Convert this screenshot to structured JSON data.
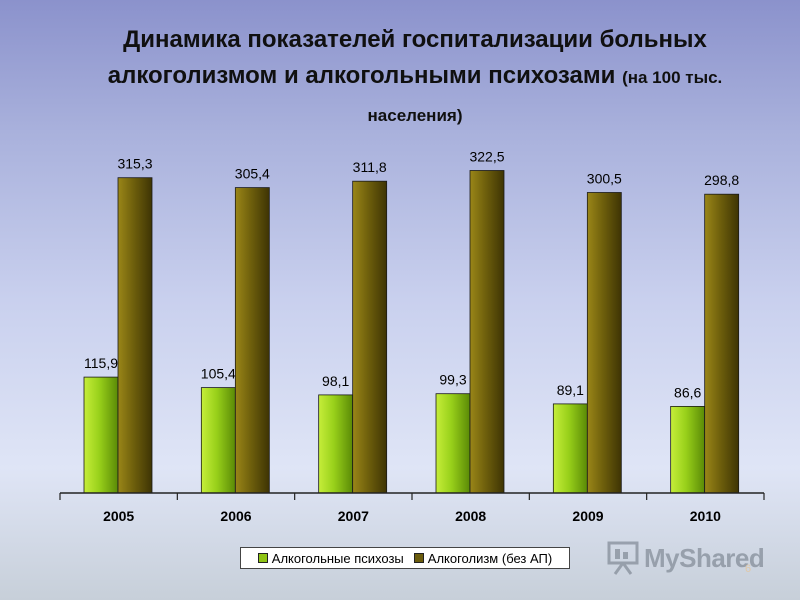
{
  "title": {
    "main": "Динамика показателей госпитализации больных алкоголизмом и алкогольными психозами",
    "suffix": "(на 100 тыс. населения)"
  },
  "chart_data": {
    "type": "bar",
    "categories": [
      "2005",
      "2006",
      "2007",
      "2008",
      "2009",
      "2010"
    ],
    "series": [
      {
        "name": "Алкогольные психозы",
        "values": [
          115.9,
          105.4,
          98.1,
          99.3,
          89.1,
          86.6
        ],
        "labels": [
          "115,9",
          "105,4",
          "98,1",
          "99,3",
          "89,1",
          "86,6"
        ],
        "color": "#8fc414"
      },
      {
        "name": "Алкоголизм (без АП)",
        "values": [
          315.3,
          305.4,
          311.8,
          322.5,
          300.5,
          298.8
        ],
        "labels": [
          "315,3",
          "305,4",
          "311,8",
          "322,5",
          "300,5",
          "298,8"
        ],
        "color": "#6b5c0c"
      }
    ],
    "ylim": [
      0,
      350
    ],
    "grid": false,
    "legend_position": "bottom"
  },
  "watermark": {
    "text": "MyShared",
    "icon": "presentation-board-icon"
  },
  "page_number": "6"
}
